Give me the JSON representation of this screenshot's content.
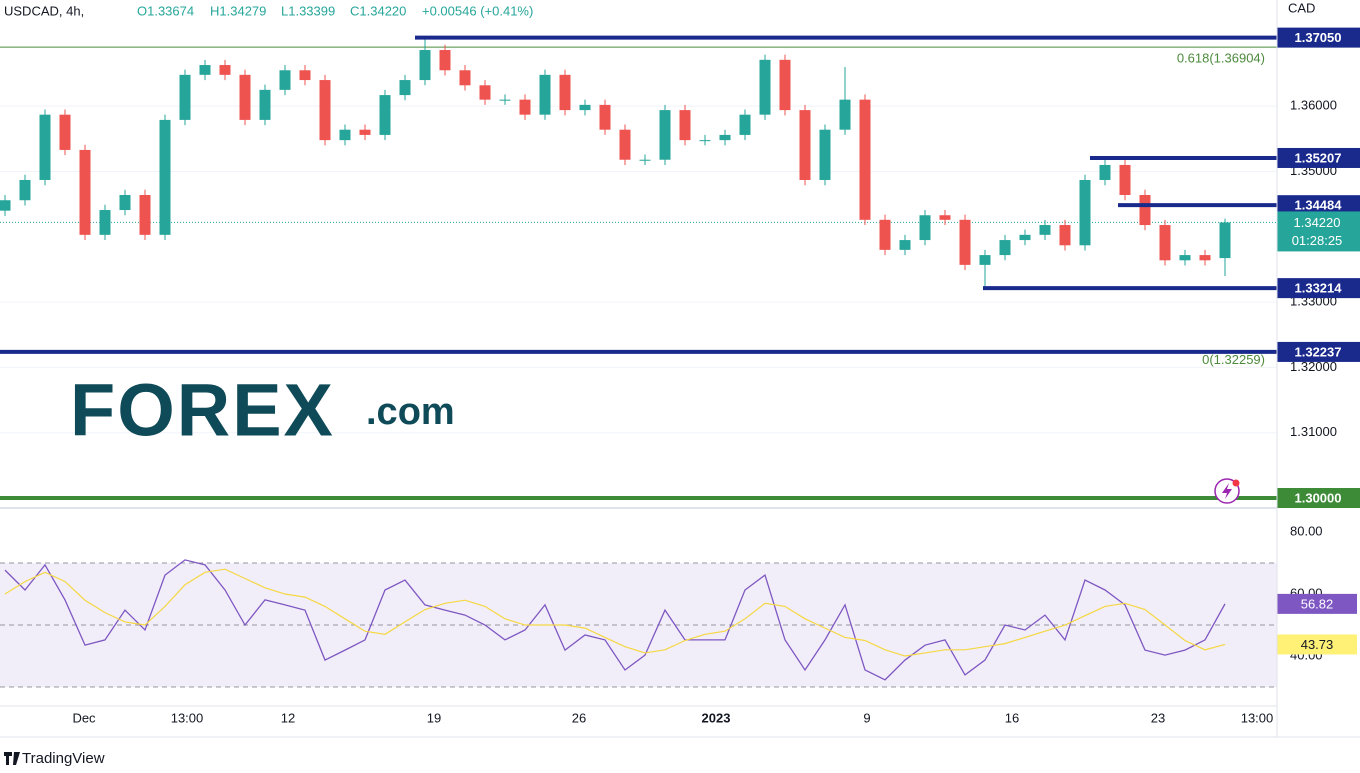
{
  "header": {
    "symbol": "USDCAD, 4h,",
    "ohlc": [
      "O1.33674",
      "H1.34279",
      "L1.33399",
      "C1.34220"
    ],
    "change": "+0.00546 (+0.41%)",
    "currency": "CAD"
  },
  "logo": {
    "brand": "FOREX",
    "suffix": ".com"
  },
  "footer": "TradingView",
  "chart_data": [
    {
      "type": "candlestick",
      "up_color": "#26a69a",
      "down_color": "#ef5350",
      "grid": true,
      "xlim": [
        0,
        255.4
      ],
      "ylim": [
        1.29893,
        1.37626
      ],
      "xticks": [
        {
          "value": 16.8,
          "label": "Dec"
        },
        {
          "value": 37.4,
          "label": "13:00"
        },
        {
          "value": 57.6,
          "label": "12"
        },
        {
          "value": 86.8,
          "label": "19"
        },
        {
          "value": 115.8,
          "label": "26"
        },
        {
          "value": 143.2,
          "label": "2023"
        },
        {
          "value": 173.4,
          "label": "9"
        },
        {
          "value": 202.4,
          "label": "16"
        },
        {
          "value": 231.6,
          "label": "23"
        },
        {
          "value": 251.4,
          "label": "13:00"
        }
      ],
      "yticks": [
        {
          "value": 1.31,
          "label": "1.31000"
        },
        {
          "value": 1.32,
          "label": "1.32000"
        },
        {
          "value": 1.33,
          "label": "1.33000"
        },
        {
          "value": 1.35,
          "label": "1.35000"
        },
        {
          "value": 1.36,
          "label": "1.36000"
        }
      ],
      "x": [
        1,
        5,
        9,
        13,
        17,
        21,
        25,
        29,
        33,
        37,
        41,
        45,
        49,
        53,
        57,
        61,
        65,
        69,
        73,
        77,
        81,
        85,
        89,
        93,
        97,
        101,
        105,
        109,
        113,
        117,
        121,
        125,
        129,
        133,
        137,
        141,
        145,
        149,
        153,
        157,
        161,
        165,
        169,
        173,
        177,
        181,
        185,
        189,
        193,
        197,
        201,
        205,
        209,
        213,
        217,
        221,
        225,
        229,
        233,
        237,
        241,
        245
      ],
      "open": [
        1.344,
        1.3456,
        1.3487,
        1.3587,
        1.3533,
        1.3403,
        1.3441,
        1.3464,
        1.3403,
        1.3579,
        1.3648,
        1.3663,
        1.3648,
        1.3579,
        1.3625,
        1.3655,
        1.364,
        1.3548,
        1.3564,
        1.3556,
        1.3617,
        1.364,
        1.3686,
        1.3655,
        1.3632,
        1.361,
        1.361,
        1.3587,
        1.3648,
        1.3594,
        1.3602,
        1.3564,
        1.3518,
        1.3518,
        1.3594,
        1.3548,
        1.3548,
        1.3556,
        1.3587,
        1.3671,
        1.3594,
        1.3487,
        1.3564,
        1.361,
        1.3426,
        1.338,
        1.3395,
        1.3433,
        1.3426,
        1.3357,
        1.3372,
        1.3395,
        1.3403,
        1.3418,
        1.3387,
        1.3487,
        1.351,
        1.3464,
        1.3418,
        1.3364,
        1.3372,
        1.33674
      ],
      "high": [
        1.3464,
        1.3495,
        1.3595,
        1.3595,
        1.3541,
        1.3449,
        1.3472,
        1.3472,
        1.3587,
        1.3656,
        1.3671,
        1.3671,
        1.3656,
        1.3633,
        1.3663,
        1.3663,
        1.3648,
        1.3572,
        1.3572,
        1.3625,
        1.3648,
        1.3705,
        1.3694,
        1.3663,
        1.364,
        1.3618,
        1.3618,
        1.3656,
        1.3656,
        1.361,
        1.361,
        1.3572,
        1.3526,
        1.3602,
        1.3602,
        1.3556,
        1.3564,
        1.3595,
        1.3679,
        1.3679,
        1.3602,
        1.3572,
        1.366,
        1.3618,
        1.3434,
        1.3403,
        1.3441,
        1.3441,
        1.3434,
        1.338,
        1.3403,
        1.3411,
        1.3426,
        1.3426,
        1.3495,
        1.3521,
        1.3518,
        1.3472,
        1.3426,
        1.338,
        1.338,
        1.34279
      ],
      "low": [
        1.3432,
        1.3448,
        1.3479,
        1.3525,
        1.3395,
        1.3395,
        1.3433,
        1.3395,
        1.3395,
        1.3571,
        1.364,
        1.364,
        1.3571,
        1.3571,
        1.3617,
        1.3632,
        1.354,
        1.354,
        1.3548,
        1.3548,
        1.3609,
        1.3632,
        1.3647,
        1.3624,
        1.3602,
        1.3602,
        1.3579,
        1.3579,
        1.3586,
        1.3586,
        1.3556,
        1.351,
        1.351,
        1.351,
        1.354,
        1.354,
        1.354,
        1.3548,
        1.3579,
        1.3586,
        1.3479,
        1.3479,
        1.3556,
        1.3418,
        1.3372,
        1.3372,
        1.3387,
        1.3418,
        1.3349,
        1.3321,
        1.3364,
        1.3387,
        1.3395,
        1.3379,
        1.3379,
        1.3479,
        1.3456,
        1.341,
        1.3356,
        1.3356,
        1.3356,
        1.33399
      ],
      "close": [
        1.3456,
        1.3487,
        1.3587,
        1.3533,
        1.3403,
        1.3441,
        1.3464,
        1.3403,
        1.3579,
        1.3648,
        1.3663,
        1.3648,
        1.3579,
        1.3625,
        1.3655,
        1.364,
        1.3548,
        1.3564,
        1.3556,
        1.3617,
        1.364,
        1.3686,
        1.3655,
        1.3632,
        1.361,
        1.361,
        1.3587,
        1.3648,
        1.3594,
        1.3602,
        1.3564,
        1.3518,
        1.3518,
        1.3594,
        1.3548,
        1.3548,
        1.3556,
        1.3587,
        1.3671,
        1.3594,
        1.3487,
        1.3564,
        1.361,
        1.3426,
        1.338,
        1.3395,
        1.3433,
        1.3426,
        1.3357,
        1.3372,
        1.3395,
        1.3403,
        1.3418,
        1.3387,
        1.3487,
        1.351,
        1.3464,
        1.3418,
        1.3364,
        1.3372,
        1.3364,
        1.3422
      ],
      "levels": [
        {
          "value": 1.3705,
          "label": "1.37050",
          "color": "#1a2a8c",
          "from": 83
        },
        {
          "value": 1.35207,
          "label": "1.35207",
          "color": "#1a2a8c",
          "from": 218
        },
        {
          "value": 1.34484,
          "label": "1.34484",
          "color": "#1a2a8c",
          "from": 223.6
        },
        {
          "value": 1.33214,
          "label": "1.33214",
          "color": "#1a2a8c",
          "from": 196.6
        },
        {
          "value": 1.32237,
          "label": "1.32237",
          "color": "#1a2a8c",
          "from": 0
        },
        {
          "value": 1.3,
          "label": "1.30000",
          "color": "#3d8b37",
          "from": 0
        }
      ],
      "fib_levels": [
        {
          "value": 1.36904,
          "label": "0.618(1.36904)"
        },
        {
          "value": 1.32259,
          "label": "0(1.32259)"
        }
      ],
      "fib_color": "#4c8a3c",
      "current_price": {
        "value": 1.3422,
        "label": "1.34220",
        "countdown": "01:28:25",
        "color": "#26a69a"
      }
    },
    {
      "type": "line",
      "ylim": [
        24.2,
        87.1
      ],
      "band": [
        30,
        70
      ],
      "midline": 50,
      "band_color": "#7e57c2",
      "yticks": [
        {
          "value": 40,
          "label": "40.00"
        },
        {
          "value": 60,
          "label": "60.00"
        },
        {
          "value": 80,
          "label": "80.00"
        }
      ],
      "series": [
        {
          "color": "#7e57c2",
          "values": [
            67.7,
            61.3,
            69.4,
            58.1,
            43.5,
            45.2,
            54.8,
            48.4,
            66.1,
            71.0,
            69.4,
            61.3,
            50.0,
            58.1,
            56.5,
            54.8,
            38.7,
            41.9,
            45.2,
            61.3,
            64.5,
            56.5,
            54.8,
            53.2,
            50.0,
            45.2,
            48.4,
            56.5,
            41.9,
            46.8,
            45.2,
            35.5,
            40.3,
            54.8,
            45.2,
            45.2,
            45.2,
            61.3,
            66.1,
            45.2,
            35.5,
            45.2,
            56.5,
            35.5,
            32.3,
            38.7,
            43.5,
            45.2,
            33.9,
            38.7,
            50.0,
            48.4,
            53.2,
            45.2,
            64.5,
            61.3,
            56.5,
            41.9,
            40.3,
            41.9,
            45.2,
            56.82
          ],
          "label_bg": "#7e57c2",
          "label_fg": "#ffffff"
        },
        {
          "color": "#f5d742",
          "values": [
            60,
            64,
            67,
            64,
            58,
            54,
            51,
            50,
            56,
            63,
            67,
            68,
            65,
            62,
            60,
            59,
            56,
            52,
            48,
            47,
            51,
            55,
            57,
            58,
            56,
            52,
            50,
            50,
            50,
            49,
            46,
            43,
            41,
            42,
            45,
            47,
            48,
            52,
            57,
            56,
            52,
            49,
            46,
            45,
            42,
            40,
            41,
            42,
            42,
            43,
            44,
            46,
            48,
            50,
            53,
            56,
            57,
            55,
            50,
            45,
            42,
            43.73
          ],
          "label_bg": "#fff176",
          "label_fg": "#131722"
        }
      ]
    }
  ]
}
